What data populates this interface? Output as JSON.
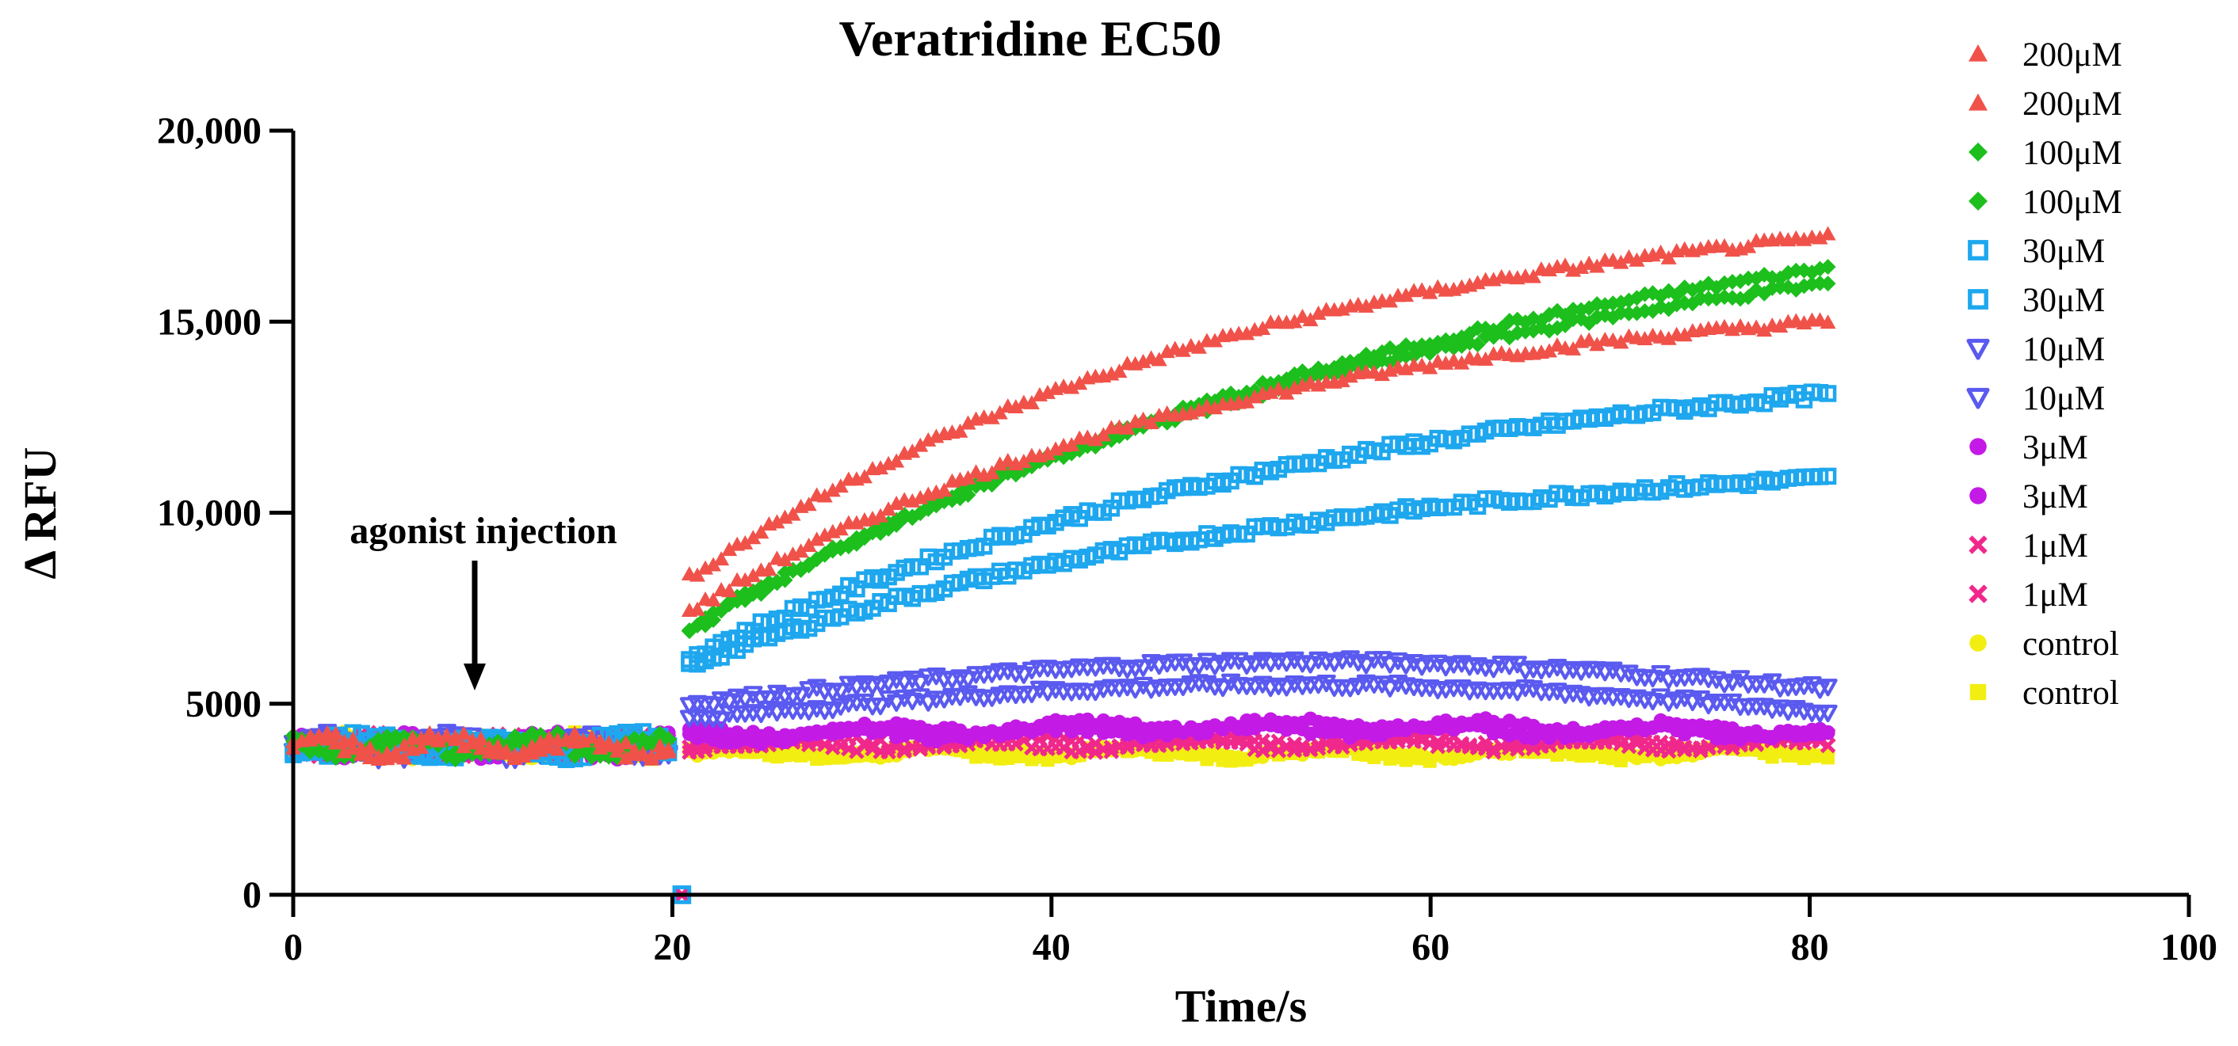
{
  "chart_data": {
    "type": "scatter",
    "title": "Veratridine EC50",
    "xlabel": "Time/s",
    "ylabel": "Δ RFU",
    "xlim": [
      0,
      100
    ],
    "ylim": [
      0,
      20000
    ],
    "xticks": [
      0,
      20,
      40,
      60,
      80,
      100
    ],
    "xtick_labels": [
      "0",
      "20",
      "40",
      "60",
      "80",
      "100"
    ],
    "yticks": [
      0,
      5000,
      10000,
      15000,
      20000
    ],
    "ytick_labels": [
      "0",
      "5000",
      "10,000",
      "15,000",
      "20,000"
    ],
    "annotation": {
      "text": "agonist injection",
      "x": 10,
      "y": 5300
    },
    "injection_time": 20.5,
    "baseline_value": 3900,
    "series": [
      {
        "name": "200μM",
        "marker": "triangle",
        "color": "#f0524a",
        "start": 8300,
        "end": 17200,
        "tau": 30
      },
      {
        "name": "200μM",
        "marker": "triangle",
        "color": "#f0524a",
        "start": 7400,
        "end": 15000,
        "tau": 28
      },
      {
        "name": "100μM",
        "marker": "diamond",
        "color": "#1cbf1c",
        "start": 6900,
        "end": 16400,
        "tau": 42
      },
      {
        "name": "100μM",
        "marker": "diamond",
        "color": "#1cbf1c",
        "start": 7000,
        "end": 16000,
        "tau": 40
      },
      {
        "name": "30μM",
        "marker": "square-open",
        "color": "#1ea7ee",
        "start": 6200,
        "end": 13100,
        "tau": 35
      },
      {
        "name": "30μM",
        "marker": "square-open",
        "color": "#1ea7ee",
        "start": 6000,
        "end": 10900,
        "tau": 30
      },
      {
        "name": "10μM",
        "marker": "triangle-down-open",
        "color": "#5a5af0",
        "start": 5000,
        "end": 5400,
        "hump": 900
      },
      {
        "name": "10μM",
        "marker": "triangle-down-open",
        "color": "#5a5af0",
        "start": 4600,
        "end": 4800,
        "hump": 800
      },
      {
        "name": "3μM",
        "marker": "circle",
        "color": "#c31ae6",
        "start": 4200,
        "end": 4300,
        "hump": 200
      },
      {
        "name": "3μM",
        "marker": "circle",
        "color": "#c31ae6",
        "start": 4100,
        "end": 4200,
        "hump": 150
      },
      {
        "name": "1μM",
        "marker": "x",
        "color": "#f0288c",
        "start": 4000,
        "end": 4000,
        "hump": 0
      },
      {
        "name": "1μM",
        "marker": "x",
        "color": "#f0288c",
        "start": 3900,
        "end": 3950,
        "hump": 0
      },
      {
        "name": "control",
        "marker": "circle",
        "color": "#f2ee12",
        "start": 3750,
        "end": 3750,
        "hump": 0
      },
      {
        "name": "control",
        "marker": "square",
        "color": "#f2ee12",
        "start": 3700,
        "end": 3700,
        "hump": 0
      }
    ]
  }
}
